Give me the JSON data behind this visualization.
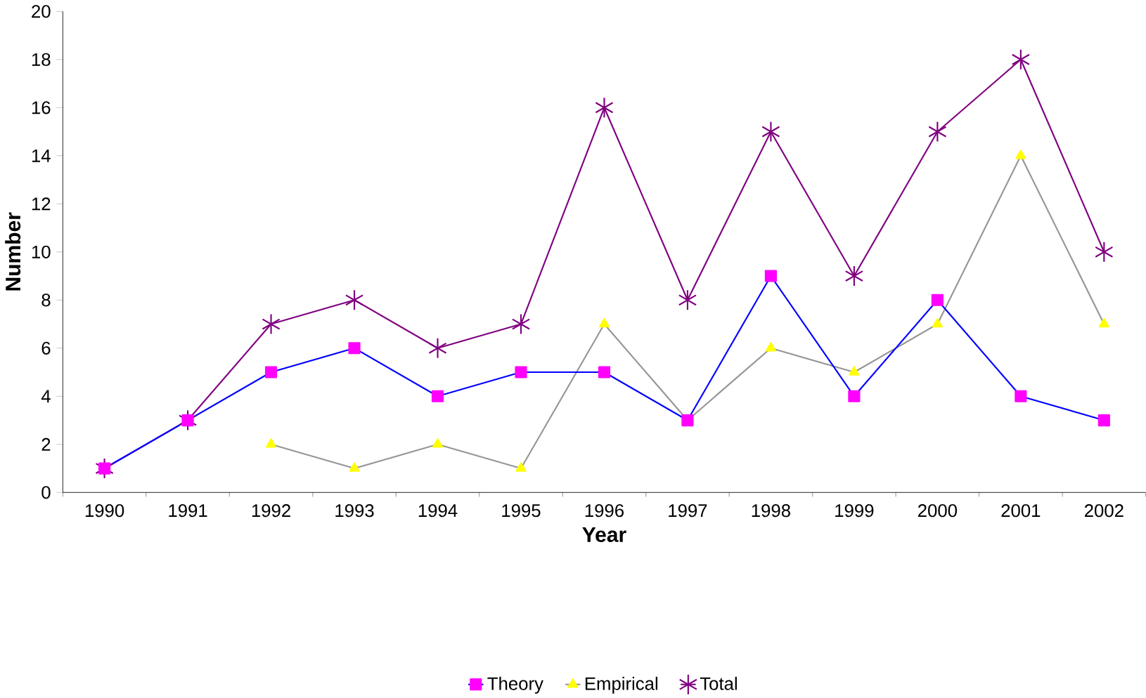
{
  "chart_data": {
    "type": "line",
    "xlabel": "Year",
    "ylabel": "Number",
    "categories": [
      "1990",
      "1991",
      "1992",
      "1993",
      "1994",
      "1995",
      "1996",
      "1997",
      "1998",
      "1999",
      "2000",
      "2001",
      "2002"
    ],
    "series": [
      {
        "name": "Theory",
        "color": "#0000ff",
        "marker": "square",
        "colors": [
          "#ff00ff",
          "#ff00ff",
          "#ff00ff",
          "#ff00ff",
          "#ff00ff",
          "#ff00ff",
          "#ff00ff",
          "#ff00ff",
          "#ff00ff",
          "#ff00ff",
          "#ff00ff",
          "#ff00ff",
          "#ff00ff"
        ],
        "values": [
          1,
          3,
          5,
          6,
          4,
          5,
          5,
          3,
          9,
          4,
          8,
          4,
          3
        ]
      },
      {
        "name": "Empirical",
        "color": "#969696",
        "marker": "triangle",
        "colors": [
          null,
          null,
          "#ffff00",
          "#ffff00",
          "#ffff00",
          "#ffff00",
          "#ffff00",
          "#ffff00",
          "#ffff00",
          "#ffff00",
          "#ffff00",
          "#ffff00",
          "#ffff00"
        ],
        "values": [
          null,
          null,
          2,
          1,
          2,
          1,
          7,
          3,
          6,
          5,
          7,
          14,
          7
        ]
      },
      {
        "name": "Total",
        "color": "#800080",
        "marker": "cross",
        "colors": [
          "#800080",
          "#800080",
          "#800080",
          "#800080",
          "#800080",
          "#800080",
          "#800080",
          "#800080",
          "#800080",
          "#800080",
          "#800080",
          "#800080",
          "#800080"
        ],
        "values": [
          1,
          3,
          7,
          8,
          6,
          7,
          16,
          8,
          15,
          9,
          15,
          18,
          10
        ]
      }
    ],
    "ylim": [
      0,
      20
    ],
    "yticks": [
      0,
      2,
      4,
      6,
      8,
      10,
      12,
      14,
      16,
      18,
      20
    ],
    "grid": false,
    "legend": "bottom"
  }
}
